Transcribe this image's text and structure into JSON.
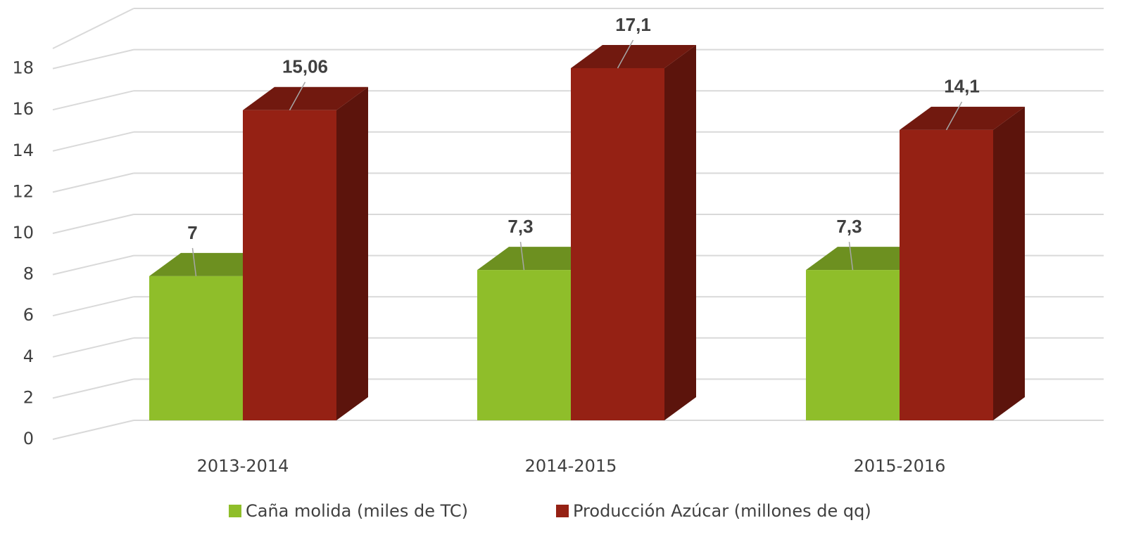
{
  "chart_data": {
    "type": "bar3d",
    "categories": [
      "2013-2014",
      "2014-2015",
      "2015-2016"
    ],
    "series": [
      {
        "name": "Caña molida (miles de TC)",
        "color": "#8fbe2a",
        "values": [
          7,
          7.3,
          7.3
        ],
        "value_labels": [
          "7",
          "7,3",
          "7,3"
        ]
      },
      {
        "name": "Producción Azúcar (millones de qq)",
        "color": "#952114",
        "values": [
          15.06,
          17.1,
          14.1
        ],
        "value_labels": [
          "15,06",
          "17,1",
          "14,1"
        ]
      }
    ],
    "ylim": [
      0,
      20
    ],
    "yticks": [
      0,
      2,
      4,
      6,
      8,
      10,
      12,
      14,
      16,
      18
    ],
    "grid": true,
    "legend": "bottom"
  }
}
